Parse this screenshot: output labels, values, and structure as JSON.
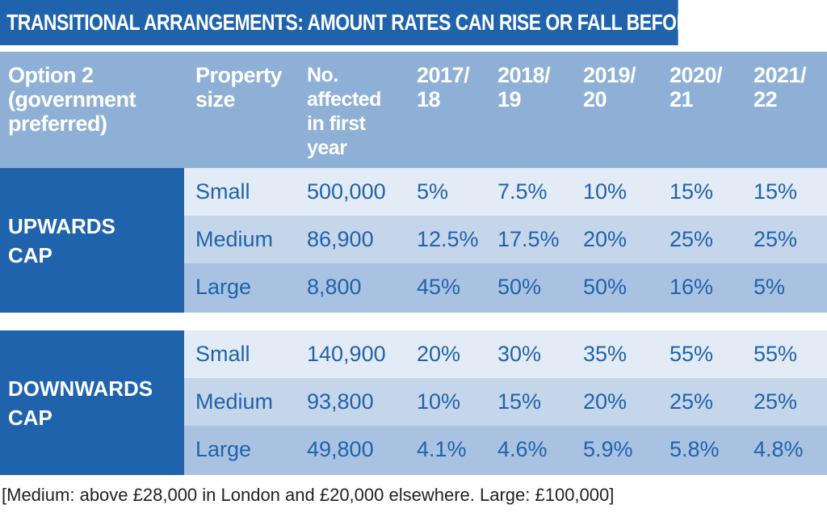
{
  "title": "TRANSITIONAL ARRANGEMENTS: AMOUNT RATES CAN RISE OR FALL BEFORE BEING CAPPED",
  "header": {
    "option": [
      "Option 2",
      "(government",
      "preferred)"
    ],
    "property_size": [
      "Property",
      "size"
    ],
    "affected": [
      "No.",
      "affected",
      "in first",
      "year"
    ],
    "years": [
      [
        "2017/",
        "18"
      ],
      [
        "2018/",
        "19"
      ],
      [
        "2019/",
        "20"
      ],
      [
        "2020/",
        "21"
      ],
      [
        "2021/",
        "22"
      ]
    ]
  },
  "sections": [
    {
      "label": [
        "UPWARDS",
        "CAP"
      ],
      "rows": [
        {
          "size": "Small",
          "affected": "500,000",
          "values": [
            "5%",
            "7.5%",
            "10%",
            "15%",
            "15%"
          ]
        },
        {
          "size": "Medium",
          "affected": "86,900",
          "values": [
            "12.5%",
            "17.5%",
            "20%",
            "25%",
            "25%"
          ]
        },
        {
          "size": "Large",
          "affected": "8,800",
          "values": [
            "45%",
            "50%",
            "50%",
            "16%",
            "5%"
          ]
        }
      ]
    },
    {
      "label": [
        "DOWNWARDS",
        "CAP"
      ],
      "rows": [
        {
          "size": "Small",
          "affected": "140,900",
          "values": [
            "20%",
            "30%",
            "35%",
            "55%",
            "55%"
          ]
        },
        {
          "size": "Medium",
          "affected": "93,800",
          "values": [
            "10%",
            "15%",
            "20%",
            "25%",
            "25%"
          ]
        },
        {
          "size": "Large",
          "affected": "49,800",
          "values": [
            "4.1%",
            "4.6%",
            "5.9%",
            "5.8%",
            "4.8%"
          ]
        }
      ]
    }
  ],
  "footnote": "[Medium: above £28,000 in London and £20,000 elsewhere. Large: £100,000]",
  "colors": {
    "accent": "#1f63ad",
    "header_bg": "#8fb0d6",
    "row_light": "#e3ebf6",
    "row_mid": "#c5d5ea",
    "row_dark": "#a9c2e1"
  }
}
